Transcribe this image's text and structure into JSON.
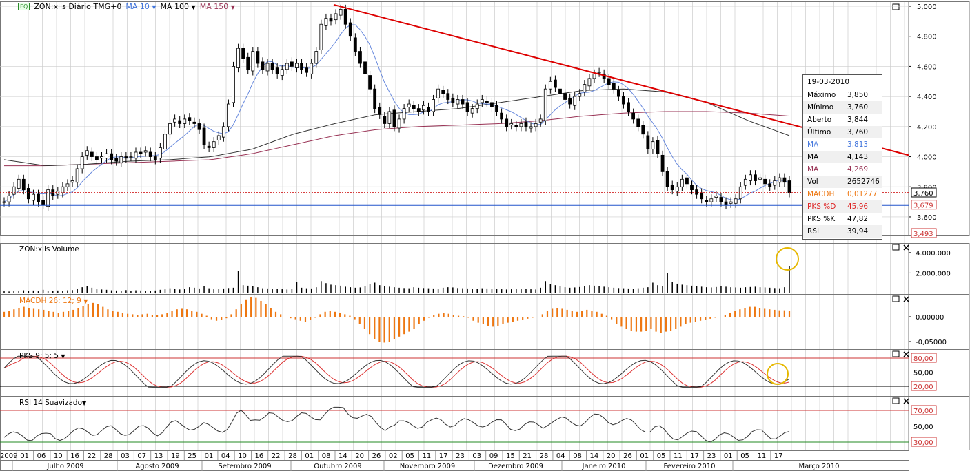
{
  "colors": {
    "candle": "#000000",
    "ma10": "#6688dd",
    "ma100": "#333333",
    "ma150": "#993355",
    "trendline": "#dd0000",
    "support": "#2255cc",
    "last_price_line": "#cc0000",
    "macd": "#ee7711",
    "pks_k": "#333333",
    "pks_d": "#dd3333",
    "rsi": "#333333",
    "highlight": "#e6b800",
    "grid": "#cccccc"
  },
  "toolbar": {
    "badge": "EQ",
    "symbol": "ZON:xlis Diário TMG+0",
    "ma10": "MA 10",
    "ma100": "MA 100",
    "ma150": "MA 150"
  },
  "panels": {
    "volume_title": "ZON:xlis Volume",
    "macd_title": "MACDH 26; 12; 9",
    "pks_title": "PKS 9; 5; 5",
    "rsi_title": "RSI 14 Suavizado"
  },
  "infobox": {
    "date": "19-03-2010",
    "rows": [
      {
        "k": "Máximo",
        "v": "3,850",
        "color": "#000000"
      },
      {
        "k": "Mínimo",
        "v": "3,760",
        "color": "#000000"
      },
      {
        "k": "Aberto",
        "v": "3,844",
        "color": "#000000"
      },
      {
        "k": "Último",
        "v": "3,760",
        "color": "#000000"
      },
      {
        "k": "MA",
        "v": "3,813",
        "color": "#4477dd"
      },
      {
        "k": "MA",
        "v": "4,143",
        "color": "#000000"
      },
      {
        "k": "MA",
        "v": "4,269",
        "color": "#993355"
      },
      {
        "k": "Vol",
        "v": "2652746",
        "color": "#000000"
      },
      {
        "k": "MACDH",
        "v": "0,01277",
        "color": "#ee7711"
      },
      {
        "k": "PKS %D",
        "v": "45,96",
        "color": "#dd2222"
      },
      {
        "k": "PKS %K",
        "v": "47,82",
        "color": "#000000"
      },
      {
        "k": "RSI",
        "v": "39,94",
        "color": "#000000"
      }
    ]
  },
  "price_axis": {
    "ticks": [
      "5,000",
      "4,800",
      "4,600",
      "4,400",
      "4,200",
      "4,000",
      "3,800",
      "3,600"
    ],
    "last_price": "3,760",
    "support_price": "3,679",
    "bottom_badge": "3,493"
  },
  "volume_axis": {
    "ticks": [
      "4.000.000",
      "2.000.000"
    ]
  },
  "macd_axis": {
    "ticks": [
      "0,00000",
      "-0,05000"
    ]
  },
  "pks_axis": {
    "ticks": [
      "80,00",
      "50,00",
      "20,00"
    ]
  },
  "rsi_axis": {
    "ticks": [
      "70,00",
      "50,00",
      "30,00"
    ]
  },
  "date_axis": {
    "days": [
      "2009",
      "01",
      "06",
      "10",
      "16",
      "22",
      "28",
      "03",
      "07",
      "13",
      "19",
      "25",
      "01",
      "04",
      "10",
      "16",
      "22",
      "28",
      "01",
      "08",
      "14",
      "20",
      "26",
      "02",
      "05",
      "11",
      "17",
      "23",
      "03",
      "09",
      "15",
      "21",
      "28",
      "04",
      "08",
      "14",
      "20",
      "26",
      "01",
      "05",
      "11",
      "17",
      "23",
      "01",
      "05",
      "11",
      "17"
    ],
    "months": [
      "Julho 2009",
      "Agosto 2009",
      "Setembro 2009",
      "Outubro 2009",
      "Novembro 2009",
      "Dezembro 2009",
      "Janeiro 2010",
      "Fevereiro 2010",
      "Março 2010"
    ]
  },
  "chart_data": {
    "type": "candlestick",
    "date_range": [
      "2009-06-29",
      "2010-03-19"
    ],
    "price_ylim": [
      3.493,
      5.0
    ],
    "trendline": {
      "from": 5.01,
      "to": 4.01,
      "label": ""
    },
    "support_level": 3.679,
    "last_close": 3.76,
    "ohlc_close": [
      3.7,
      3.74,
      3.8,
      3.85,
      3.78,
      3.72,
      3.75,
      3.7,
      3.68,
      3.78,
      3.74,
      3.77,
      3.8,
      3.82,
      3.84,
      3.92,
      4.0,
      4.04,
      4.0,
      3.98,
      4.0,
      4.02,
      3.98,
      3.97,
      4.0,
      3.99,
      4.0,
      4.03,
      4.02,
      4.04,
      4.0,
      3.98,
      4.06,
      4.15,
      4.22,
      4.25,
      4.22,
      4.25,
      4.24,
      4.22,
      4.18,
      4.08,
      4.06,
      4.1,
      4.14,
      4.2,
      4.35,
      4.6,
      4.72,
      4.65,
      4.58,
      4.7,
      4.62,
      4.58,
      4.62,
      4.58,
      4.55,
      4.58,
      4.62,
      4.6,
      4.62,
      4.58,
      4.56,
      4.62,
      4.7,
      4.88,
      4.92,
      4.9,
      4.95,
      4.98,
      4.88,
      4.8,
      4.7,
      4.62,
      4.55,
      4.45,
      4.32,
      4.28,
      4.22,
      4.3,
      4.2,
      4.25,
      4.32,
      4.35,
      4.32,
      4.3,
      4.34,
      4.3,
      4.38,
      4.45,
      4.42,
      4.38,
      4.36,
      4.38,
      4.35,
      4.3,
      4.32,
      4.35,
      4.38,
      4.36,
      4.33,
      4.3,
      4.25,
      4.2,
      4.22,
      4.2,
      4.22,
      4.2,
      4.2,
      4.22,
      4.25,
      4.45,
      4.5,
      4.46,
      4.42,
      4.38,
      4.35,
      4.4,
      4.42,
      4.48,
      4.52,
      4.55,
      4.56,
      4.52,
      4.48,
      4.45,
      4.4,
      4.35,
      4.3,
      4.25,
      4.2,
      4.15,
      4.05,
      4.1,
      4.02,
      3.9,
      3.8,
      3.78,
      3.8,
      3.85,
      3.82,
      3.78,
      3.75,
      3.72,
      3.7,
      3.72,
      3.74,
      3.7,
      3.68,
      3.7,
      3.72,
      3.8,
      3.85,
      3.88,
      3.84,
      3.86,
      3.82,
      3.8,
      3.84,
      3.86,
      3.83,
      3.76
    ],
    "volume_max": 4000000,
    "volume": [
      0.2,
      0.18,
      0.22,
      0.25,
      0.3,
      0.22,
      0.28,
      0.2,
      0.35,
      0.22,
      0.24,
      0.28,
      0.26,
      0.3,
      0.32,
      0.45,
      0.6,
      0.7,
      0.55,
      0.4,
      0.38,
      0.35,
      0.3,
      0.28,
      0.25,
      0.32,
      0.26,
      0.3,
      0.28,
      0.24,
      0.22,
      0.28,
      0.35,
      0.4,
      0.5,
      0.45,
      0.38,
      0.42,
      0.6,
      0.55,
      0.48,
      0.7,
      0.5,
      0.4,
      0.45,
      0.48,
      0.52,
      0.55,
      2.2,
      0.8,
      0.75,
      0.7,
      0.6,
      0.5,
      0.48,
      0.45,
      0.42,
      0.4,
      0.38,
      0.42,
      1.1,
      0.55,
      0.5,
      0.48,
      0.6,
      1.2,
      1.0,
      0.85,
      0.8,
      0.75,
      0.65,
      0.6,
      0.55,
      0.58,
      0.7,
      0.9,
      1.05,
      0.8,
      0.7,
      0.65,
      0.6,
      0.55,
      0.52,
      0.5,
      0.6,
      0.55,
      0.52,
      0.5,
      0.48,
      0.45,
      0.55,
      0.6,
      0.58,
      0.52,
      0.5,
      0.48,
      0.45,
      0.42,
      0.5,
      0.48,
      0.45,
      0.42,
      0.4,
      0.38,
      0.4,
      0.42,
      0.45,
      0.42,
      0.4,
      0.38,
      0.55,
      1.2,
      0.9,
      0.8,
      0.7,
      0.6,
      0.55,
      0.58,
      0.62,
      0.7,
      0.8,
      0.75,
      0.7,
      0.65,
      0.6,
      0.55,
      0.52,
      0.5,
      0.48,
      0.45,
      0.5,
      0.55,
      0.6,
      1.05,
      0.8,
      0.7,
      2.0,
      1.1,
      0.95,
      0.85,
      0.8,
      0.75,
      0.7,
      0.65,
      0.6,
      0.58,
      0.62,
      0.7,
      0.65,
      0.6,
      0.58,
      0.55,
      0.6,
      0.62,
      0.65,
      0.6,
      0.58,
      0.55,
      0.52,
      0.5,
      0.6,
      2.65
    ],
    "macd": [
      0.01,
      0.012,
      0.015,
      0.018,
      0.02,
      0.018,
      0.016,
      0.015,
      0.014,
      0.012,
      0.01,
      0.008,
      0.01,
      0.012,
      0.014,
      0.018,
      0.022,
      0.025,
      0.028,
      0.025,
      0.02,
      0.015,
      0.012,
      0.01,
      0.008,
      0.006,
      0.005,
      0.004,
      0.005,
      0.006,
      0.004,
      0.003,
      0.005,
      0.008,
      0.012,
      0.015,
      0.016,
      0.015,
      0.012,
      0.01,
      0.006,
      0.002,
      -0.005,
      -0.008,
      -0.006,
      -0.003,
      0.005,
      0.015,
      0.025,
      0.035,
      0.04,
      0.038,
      0.032,
      0.025,
      0.018,
      0.01,
      0.005,
      0.0,
      -0.003,
      -0.005,
      -0.008,
      -0.01,
      -0.006,
      -0.002,
      0.005,
      0.01,
      0.012,
      0.01,
      0.008,
      0.005,
      0.002,
      -0.005,
      -0.015,
      -0.025,
      -0.035,
      -0.045,
      -0.05,
      -0.052,
      -0.05,
      -0.045,
      -0.04,
      -0.035,
      -0.03,
      -0.025,
      -0.015,
      -0.008,
      -0.002,
      0.003,
      0.006,
      0.008,
      0.006,
      0.004,
      0.002,
      0.001,
      -0.002,
      -0.008,
      -0.012,
      -0.015,
      -0.018,
      -0.02,
      -0.018,
      -0.015,
      -0.012,
      -0.01,
      -0.008,
      -0.006,
      -0.004,
      -0.002,
      0.0,
      0.005,
      0.012,
      0.016,
      0.018,
      0.016,
      0.014,
      0.012,
      0.01,
      0.012,
      0.014,
      0.012,
      0.01,
      0.006,
      0.002,
      -0.005,
      -0.015,
      -0.02,
      -0.025,
      -0.028,
      -0.03,
      -0.03,
      -0.028,
      -0.025,
      -0.03,
      -0.032,
      -0.03,
      -0.028,
      -0.025,
      -0.02,
      -0.015,
      -0.012,
      -0.01,
      -0.008,
      -0.006,
      -0.004,
      -0.002,
      0.0,
      0.004,
      0.008,
      0.012,
      0.015,
      0.018,
      0.02,
      0.02,
      0.018,
      0.016,
      0.015,
      0.014,
      0.013,
      0.013,
      0.012
    ],
    "pks_levels": [
      80,
      50,
      20
    ],
    "rsi_levels": [
      70,
      50,
      30
    ],
    "rsi_ylim": [
      25,
      75
    ],
    "pks_ylim": [
      15,
      85
    ]
  }
}
